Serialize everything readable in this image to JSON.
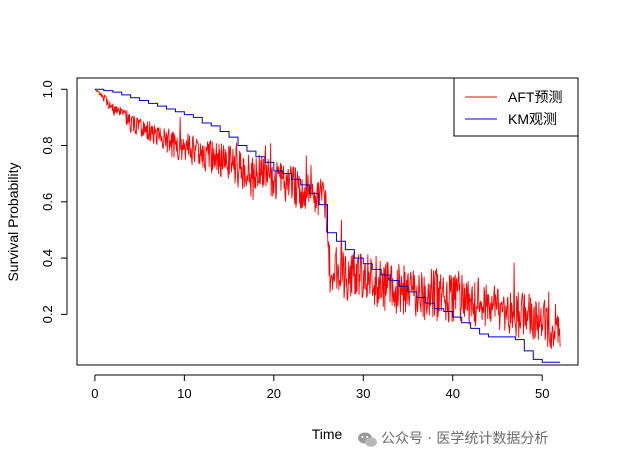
{
  "chart_data": {
    "type": "line",
    "title": "",
    "xlabel": "Time",
    "ylabel": "Survival Probability",
    "xlim": [
      -2,
      54
    ],
    "ylim": [
      0.02,
      1.04
    ],
    "xticks": [
      0,
      10,
      20,
      30,
      40,
      50
    ],
    "xtick_labels": [
      "0",
      "10",
      "20",
      "30",
      "40",
      "50"
    ],
    "yticks": [
      0.2,
      0.4,
      0.6,
      0.8,
      1.0
    ],
    "ytick_labels": [
      "0.2",
      "0.4",
      "0.6",
      "0.8",
      "1.0"
    ],
    "grid": false,
    "legend_position": "top-right",
    "series": [
      {
        "name": "AFT预测",
        "color": "#ff0000",
        "style": "noisy line",
        "x": [
          0,
          1,
          2,
          3,
          4,
          5,
          6,
          7,
          8,
          9,
          10,
          11,
          12,
          13,
          14,
          15,
          16,
          17,
          18,
          19,
          20,
          21,
          22,
          23,
          24,
          25,
          25.8,
          26.3,
          27,
          28,
          29,
          30,
          31,
          32,
          33,
          34,
          35,
          36,
          37,
          38,
          39,
          40,
          41,
          42,
          43,
          44,
          45,
          46,
          47,
          48,
          49,
          50,
          51,
          52
        ],
        "y": [
          1.0,
          0.97,
          0.93,
          0.91,
          0.88,
          0.87,
          0.85,
          0.84,
          0.82,
          0.8,
          0.79,
          0.78,
          0.77,
          0.76,
          0.75,
          0.74,
          0.72,
          0.71,
          0.7,
          0.69,
          0.68,
          0.67,
          0.66,
          0.64,
          0.63,
          0.62,
          0.61,
          0.33,
          0.36,
          0.34,
          0.34,
          0.33,
          0.32,
          0.31,
          0.31,
          0.29,
          0.29,
          0.28,
          0.27,
          0.27,
          0.26,
          0.26,
          0.25,
          0.24,
          0.24,
          0.23,
          0.22,
          0.22,
          0.2,
          0.2,
          0.18,
          0.17,
          0.16,
          0.15
        ],
        "noise": [
          0.0,
          0.01,
          0.015,
          0.02,
          0.025,
          0.025,
          0.03,
          0.03,
          0.035,
          0.035,
          0.04,
          0.04,
          0.04,
          0.045,
          0.045,
          0.045,
          0.05,
          0.05,
          0.05,
          0.05,
          0.05,
          0.05,
          0.05,
          0.05,
          0.05,
          0.05,
          0.05,
          0.06,
          0.06,
          0.065,
          0.065,
          0.065,
          0.07,
          0.07,
          0.07,
          0.07,
          0.07,
          0.07,
          0.07,
          0.07,
          0.065,
          0.065,
          0.065,
          0.065,
          0.065,
          0.06,
          0.06,
          0.06,
          0.06,
          0.06,
          0.06,
          0.06,
          0.06,
          0.06
        ]
      },
      {
        "name": "KM观测",
        "color": "#0000cc",
        "style": "step",
        "x": [
          0,
          1,
          2,
          3,
          4,
          5,
          6,
          7,
          8,
          9,
          10,
          11,
          12,
          13,
          14,
          15,
          16,
          17,
          18,
          19,
          20,
          21,
          22,
          23,
          24,
          25,
          26,
          27,
          28,
          29,
          30,
          31,
          32,
          33,
          34,
          35,
          36,
          37,
          38,
          39,
          40,
          41,
          42,
          43,
          44,
          45,
          46,
          47,
          48,
          49,
          50,
          51,
          52
        ],
        "y": [
          1.0,
          0.995,
          0.99,
          0.98,
          0.97,
          0.96,
          0.95,
          0.94,
          0.93,
          0.92,
          0.91,
          0.9,
          0.88,
          0.87,
          0.85,
          0.83,
          0.8,
          0.78,
          0.76,
          0.74,
          0.71,
          0.7,
          0.68,
          0.66,
          0.63,
          0.59,
          0.49,
          0.46,
          0.43,
          0.4,
          0.38,
          0.36,
          0.34,
          0.32,
          0.3,
          0.28,
          0.26,
          0.24,
          0.22,
          0.21,
          0.19,
          0.17,
          0.15,
          0.13,
          0.12,
          0.12,
          0.12,
          0.11,
          0.07,
          0.04,
          0.03,
          0.03,
          0.03
        ]
      }
    ]
  },
  "watermark": {
    "text": "公众号 · 医学统计数据分析",
    "icon": "wechat-icon"
  }
}
